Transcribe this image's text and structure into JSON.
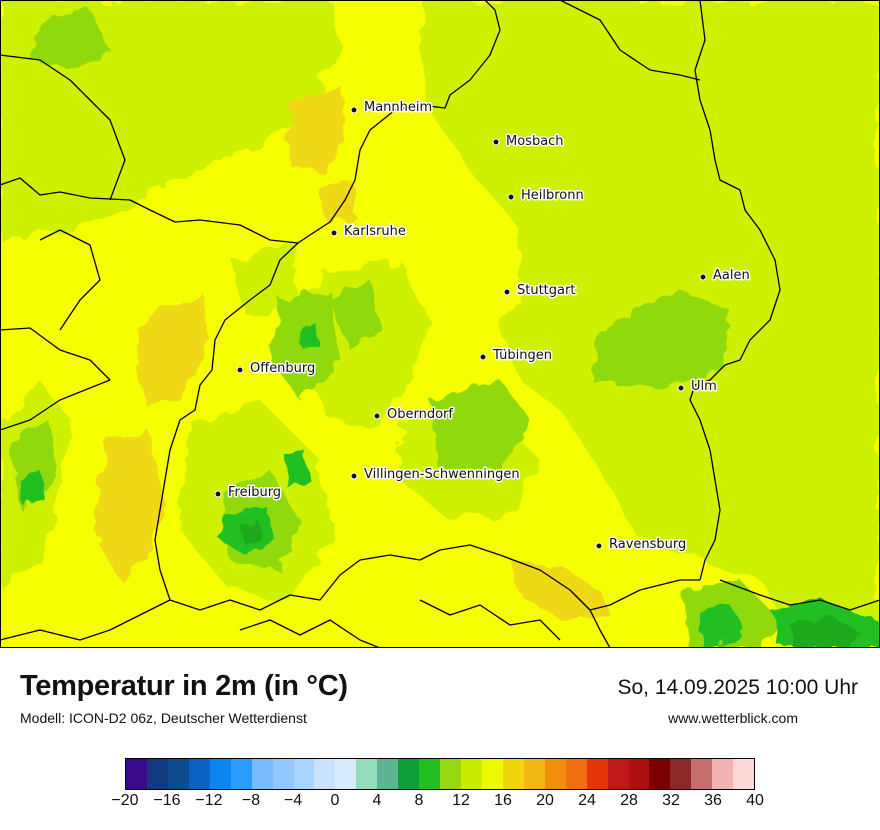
{
  "map": {
    "cities": [
      {
        "id": "mannheim",
        "name": "Mannheim"
      },
      {
        "id": "mosbach",
        "name": "Mosbach"
      },
      {
        "id": "heilbronn",
        "name": "Heilbronn"
      },
      {
        "id": "karlsruhe",
        "name": "Karlsruhe"
      },
      {
        "id": "aalen",
        "name": "Aalen"
      },
      {
        "id": "stuttgart",
        "name": "Stuttgart"
      },
      {
        "id": "tuebingen",
        "name": "Tübingen"
      },
      {
        "id": "offenburg",
        "name": "Offenburg"
      },
      {
        "id": "ulm",
        "name": "Ulm"
      },
      {
        "id": "oberndorf",
        "name": "Oberndorf"
      },
      {
        "id": "villingen",
        "name": "Villingen-Schwenningen"
      },
      {
        "id": "freiburg",
        "name": "Freiburg"
      },
      {
        "id": "ravensburg",
        "name": "Ravensburg"
      }
    ],
    "colors": {
      "c4": "#9fd96a",
      "c8": "#1fa91f",
      "c10": "#22bf22",
      "c12": "#8fd90e",
      "c14": "#cdf100",
      "c16": "#f5ff00",
      "c18": "#efd817",
      "border": "#000000"
    }
  },
  "footer": {
    "title": "Temperatur in 2m (in °C)",
    "model": "Modell: ICON-D2 06z, Deutscher Wetterdienst",
    "datetime": "So, 14.09.2025 10:00 Uhr",
    "website": "www.wetterblick.com"
  },
  "legend": {
    "colors": [
      "#3a0a8c",
      "#123a7e",
      "#0e4a8e",
      "#0a63c5",
      "#0a86f0",
      "#2c9dff",
      "#78bbff",
      "#92c8ff",
      "#a7d5ff",
      "#c9e3ff",
      "#d9ecff",
      "#93dcbc",
      "#5fb394",
      "#0d9f37",
      "#24bd1f",
      "#96d912",
      "#c9ec00",
      "#eefa00",
      "#f1d60d",
      "#f2b912",
      "#f28e0e",
      "#f26e12",
      "#e8340a",
      "#c01818",
      "#ad1010",
      "#7c0000",
      "#8c2a2a",
      "#c46e6e",
      "#f3b3b3",
      "#ffd9da"
    ],
    "ticks": [
      "−20",
      "−16",
      "−12",
      "−8",
      "−4",
      "0",
      "4",
      "8",
      "12",
      "16",
      "20",
      "24",
      "28",
      "32",
      "36",
      "40"
    ]
  }
}
